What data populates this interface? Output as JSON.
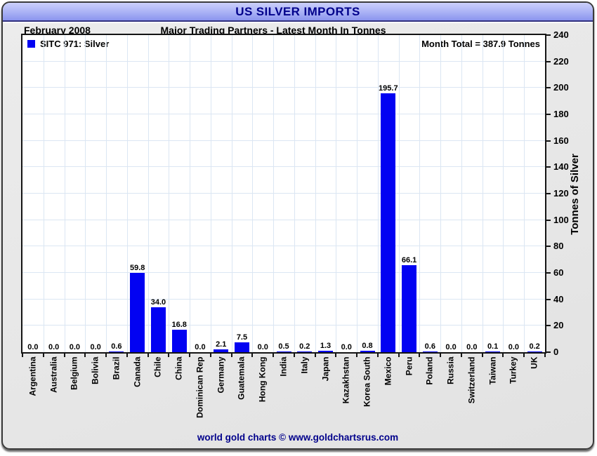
{
  "page": {
    "title": "US SILVER IMPORTS",
    "period": "February 2008",
    "subtitle": "Major Trading Partners - Latest Month In Tonnes",
    "footer": "world gold charts © www.goldchartsrus.com"
  },
  "legend": {
    "series_label": "SITC 971: Silver"
  },
  "month_total_text": "Month Total = 387.9 Tonnes",
  "colors": {
    "bar": "#0202f2",
    "title_text": "#00008b",
    "grid": "#dbe6f3",
    "header_band_top": "#ccd0fa",
    "header_band_bottom": "#8b94ee"
  },
  "chart_data": {
    "type": "bar",
    "title": "US SILVER IMPORTS",
    "subtitle": "Major Trading Partners - Latest Month In Tonnes",
    "period": "February 2008",
    "month_total_tonnes": 387.9,
    "legend": [
      "SITC 971: Silver"
    ],
    "legend_position": "top-left",
    "xlabel": "",
    "ylabel": "Tonnes of Silver",
    "ylim": [
      0,
      240
    ],
    "ytick_step": 20,
    "grid": true,
    "bar_color": "#0202f2",
    "categories": [
      "Argentina",
      "Australia",
      "Belgium",
      "Bolivia",
      "Brazil",
      "Canada",
      "Chile",
      "China",
      "Dominican Rep",
      "Germany",
      "Guatemala",
      "Hong Kong",
      "India",
      "Italy",
      "Japan",
      "Kazakhstan",
      "Korea South",
      "Mexico",
      "Peru",
      "Poland",
      "Russia",
      "Switzerland",
      "Taiwan",
      "Turkey",
      "UK"
    ],
    "values": [
      0.0,
      0.0,
      0.0,
      0.0,
      0.6,
      59.8,
      34.0,
      16.8,
      0.0,
      2.1,
      7.5,
      0.0,
      0.5,
      0.2,
      1.3,
      0.0,
      0.8,
      195.7,
      66.1,
      0.6,
      0.0,
      0.0,
      0.1,
      0.0,
      0.2
    ],
    "value_labels": [
      "0.0",
      "0.0",
      "0.0",
      "0.0",
      "0.6",
      "59.8",
      "34.0",
      "16.8",
      "0.0",
      "2.1",
      "7.5",
      "0.0",
      "0.5",
      "0.2",
      "1.3",
      "0.0",
      "0.8",
      "195.7",
      "66.1",
      "0.6",
      "0.0",
      "0.0",
      "0.1",
      "0.0",
      "0.2"
    ]
  }
}
